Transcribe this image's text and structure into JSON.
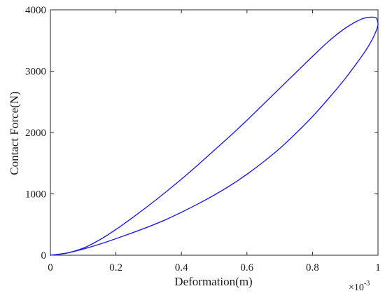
{
  "chart_data": {
    "type": "line",
    "title": "",
    "xlabel": "Deformation(m)",
    "ylabel": "Contact Force(N)",
    "x_exponent_label": "×10",
    "x_exponent_power": "-3",
    "xlim": [
      0,
      1
    ],
    "ylim": [
      0,
      4000
    ],
    "x_scale_factor": 0.001,
    "xticks": [
      "0",
      "0.2",
      "0.4",
      "0.6",
      "0.8",
      "1"
    ],
    "yticks": [
      "0",
      "1000",
      "2000",
      "3000",
      "4000"
    ],
    "xtick_values": [
      0,
      0.2,
      0.4,
      0.6,
      0.8,
      1
    ],
    "ytick_values": [
      0,
      1000,
      2000,
      3000,
      4000
    ],
    "grid": false,
    "legend": "none",
    "line_color": "#1f1fe0",
    "series": [
      {
        "segment": "loading",
        "x": [
          0,
          0.05,
          0.1,
          0.15,
          0.2,
          0.25,
          0.3,
          0.35,
          0.4,
          0.45,
          0.5,
          0.55,
          0.6,
          0.65,
          0.7,
          0.75,
          0.8,
          0.85,
          0.9,
          0.95,
          0.98,
          0.995
        ],
        "y": [
          0,
          35,
          115,
          250,
          420,
          610,
          810,
          1020,
          1240,
          1470,
          1710,
          1950,
          2200,
          2460,
          2720,
          2980,
          3240,
          3490,
          3700,
          3850,
          3880,
          3870
        ]
      },
      {
        "segment": "unloading",
        "x": [
          0.995,
          1,
          0.99,
          0.97,
          0.95,
          0.9,
          0.85,
          0.8,
          0.75,
          0.7,
          0.65,
          0.6,
          0.55,
          0.5,
          0.45,
          0.4,
          0.35,
          0.3,
          0.25,
          0.2,
          0.15,
          0.1,
          0.05,
          0
        ],
        "y": [
          3870,
          3760,
          3600,
          3400,
          3240,
          2880,
          2560,
          2260,
          1990,
          1740,
          1520,
          1320,
          1140,
          980,
          835,
          700,
          575,
          465,
          365,
          270,
          180,
          100,
          35,
          0
        ]
      }
    ]
  }
}
